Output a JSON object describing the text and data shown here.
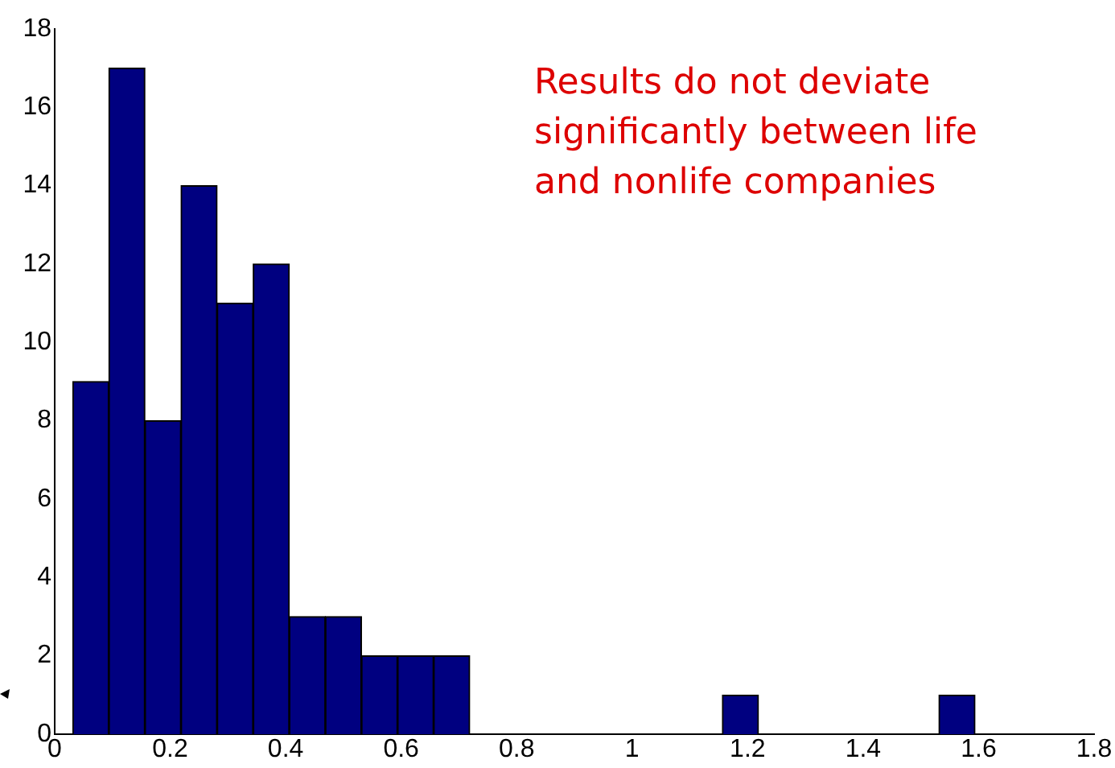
{
  "chart_data": {
    "type": "histogram",
    "bins": [
      0.031,
      0.094,
      0.156,
      0.219,
      0.281,
      0.344,
      0.406,
      0.469,
      0.531,
      0.594,
      0.656,
      0.719,
      0.781,
      0.844,
      0.906,
      0.969,
      1.031,
      1.094,
      1.156,
      1.219,
      1.281,
      1.344,
      1.406,
      1.469,
      1.531,
      1.594
    ],
    "values": [
      9,
      17,
      8,
      14,
      11,
      12,
      3,
      3,
      2,
      2,
      2,
      0,
      0,
      0,
      0,
      0,
      0,
      0,
      1,
      0,
      0,
      0,
      0,
      0,
      1
    ],
    "color": "#000080",
    "xlim": [
      0,
      1.8
    ],
    "xticks": [
      0,
      0.2,
      0.4,
      0.6,
      0.8,
      1,
      1.2,
      1.4,
      1.6,
      1.8
    ],
    "ylim": [
      0,
      18
    ],
    "yticks": [
      0,
      2,
      4,
      6,
      8,
      10,
      12,
      14,
      16,
      18
    ],
    "grid": false,
    "legend": false,
    "annotations": [
      "Results do not deviate significantly between life and nonlife companies"
    ]
  }
}
